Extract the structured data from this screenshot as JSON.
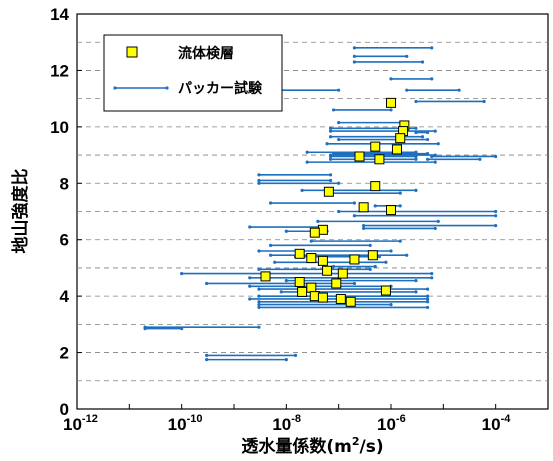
{
  "chart_data": {
    "type": "scatter",
    "title": "",
    "xlabel": "透水量係数(m²/s)",
    "xlabel_main": "透水量係数(m",
    "xlabel_sup": "2",
    "xlabel_tail": "/s)",
    "ylabel": "地山強度比",
    "xscale": "log",
    "xlim_exponent": [
      -12,
      -3
    ],
    "x_tick_base": "10",
    "x_tick_exponents": [
      "-12",
      "-10",
      "-8",
      "-6",
      "-4"
    ],
    "ylim": [
      0,
      14
    ],
    "y_ticks": [
      "0",
      "2",
      "4",
      "6",
      "8",
      "10",
      "12",
      "14"
    ],
    "grid": "horizontal dashed every 1",
    "legend_position": "top-left",
    "colors": {
      "marker_fill": "#FFFF00",
      "marker_edge": "#000000",
      "line": "#1f6fbf",
      "grid": "#808080"
    },
    "legend": [
      {
        "label": "流体検層",
        "kind": "square-marker"
      },
      {
        "label": "パッカー試験",
        "kind": "line"
      }
    ],
    "series": [
      {
        "name": "流体検層",
        "points": [
          [
            1e-06,
            10.85
          ],
          [
            1.8e-06,
            10.05
          ],
          [
            1.7e-06,
            9.85
          ],
          [
            1.5e-06,
            9.6
          ],
          [
            5e-07,
            9.3
          ],
          [
            1.3e-06,
            9.2
          ],
          [
            2.5e-07,
            8.95
          ],
          [
            6e-07,
            8.85
          ],
          [
            5e-07,
            7.9
          ],
          [
            6.5e-08,
            7.7
          ],
          [
            3e-07,
            7.15
          ],
          [
            1e-06,
            7.05
          ],
          [
            5e-08,
            6.35
          ],
          [
            3.5e-08,
            6.25
          ],
          [
            4.5e-07,
            5.45
          ],
          [
            1.8e-08,
            5.5
          ],
          [
            3e-08,
            5.35
          ],
          [
            5e-08,
            5.25
          ],
          [
            2e-07,
            5.3
          ],
          [
            6e-08,
            4.9
          ],
          [
            1.2e-07,
            4.8
          ],
          [
            4e-09,
            4.7
          ],
          [
            1.8e-08,
            4.5
          ],
          [
            3e-08,
            4.3
          ],
          [
            9e-08,
            4.45
          ],
          [
            8e-07,
            4.2
          ],
          [
            2e-08,
            4.15
          ],
          [
            3.5e-08,
            4.0
          ],
          [
            5e-08,
            3.95
          ],
          [
            1.1e-07,
            3.9
          ],
          [
            1.7e-07,
            3.8
          ]
        ]
      },
      {
        "name": "パッカー試験",
        "segments": [
          [
            2e-07,
            6e-06,
            12.8
          ],
          [
            2e-07,
            2e-06,
            12.5
          ],
          [
            2e-07,
            4e-06,
            12.3
          ],
          [
            1e-06,
            6e-06,
            11.7
          ],
          [
            1e-11,
            1e-07,
            11.3
          ],
          [
            2e-06,
            2e-05,
            11.3
          ],
          [
            3e-06,
            6e-05,
            10.9
          ],
          [
            8e-08,
            1e-06,
            10.6
          ],
          [
            1e-07,
            2e-06,
            10.15
          ],
          [
            7e-08,
            3e-06,
            9.95
          ],
          [
            7e-08,
            7e-06,
            9.85
          ],
          [
            3e-06,
            5e-06,
            9.8
          ],
          [
            7e-08,
            4e-06,
            9.65
          ],
          [
            1e-07,
            5e-06,
            9.55
          ],
          [
            6e-08,
            8e-06,
            9.4
          ],
          [
            2.5e-08,
            3e-06,
            9.1
          ],
          [
            8e-08,
            5e-06,
            9.05
          ],
          [
            7e-08,
            7e-06,
            9.0
          ],
          [
            7e-08,
            3e-06,
            8.95
          ],
          [
            7e-08,
            3e-06,
            8.85
          ],
          [
            6e-06,
            0.0001,
            8.95
          ],
          [
            5e-06,
            5e-05,
            8.85
          ],
          [
            2.5e-08,
            7e-06,
            8.75
          ],
          [
            3e-09,
            7e-08,
            8.3
          ],
          [
            3e-09,
            7e-08,
            8.1
          ],
          [
            3e-09,
            1e-07,
            8.0
          ],
          [
            2e-08,
            3e-06,
            7.75
          ],
          [
            6e-08,
            1.5e-06,
            7.65
          ],
          [
            5e-09,
            2e-07,
            7.3
          ],
          [
            5e-07,
            1.5e-06,
            7.2
          ],
          [
            1e-07,
            0.0001,
            7.0
          ],
          [
            2e-07,
            0.0001,
            6.85
          ],
          [
            4e-08,
            8e-06,
            6.65
          ],
          [
            3e-07,
            0.0001,
            6.5
          ],
          [
            3e-07,
            7e-06,
            6.4
          ],
          [
            2e-09,
            5e-08,
            6.45
          ],
          [
            1e-08,
            6e-08,
            6.3
          ],
          [
            3e-08,
            1.5e-06,
            5.95
          ],
          [
            5e-09,
            4e-07,
            5.8
          ],
          [
            3e-09,
            1e-06,
            5.6
          ],
          [
            5e-09,
            2e-06,
            5.45
          ],
          [
            1.5e-08,
            6e-07,
            5.4
          ],
          [
            6e-09,
            8e-07,
            5.2
          ],
          [
            8e-08,
            5e-07,
            5.05
          ],
          [
            3e-09,
            4e-07,
            4.95
          ],
          [
            1e-10,
            6e-06,
            4.8
          ],
          [
            2e-09,
            6e-06,
            4.65
          ],
          [
            1e-08,
            3e-06,
            4.55
          ],
          [
            3e-10,
            2e-07,
            4.45
          ],
          [
            2e-09,
            1e-06,
            4.35
          ],
          [
            3e-09,
            5e-06,
            4.25
          ],
          [
            8e-09,
            3e-06,
            4.15
          ],
          [
            3e-09,
            5e-06,
            4.0
          ],
          [
            2e-09,
            5e-06,
            3.9
          ],
          [
            3e-09,
            5e-06,
            3.8
          ],
          [
            3e-09,
            1e-06,
            3.7
          ],
          [
            3e-09,
            5e-06,
            3.6
          ],
          [
            2e-11,
            3e-09,
            2.9
          ],
          [
            2e-11,
            1e-10,
            2.85
          ],
          [
            3e-10,
            1.5e-08,
            1.9
          ],
          [
            3e-10,
            1e-08,
            1.75
          ]
        ]
      }
    ]
  }
}
